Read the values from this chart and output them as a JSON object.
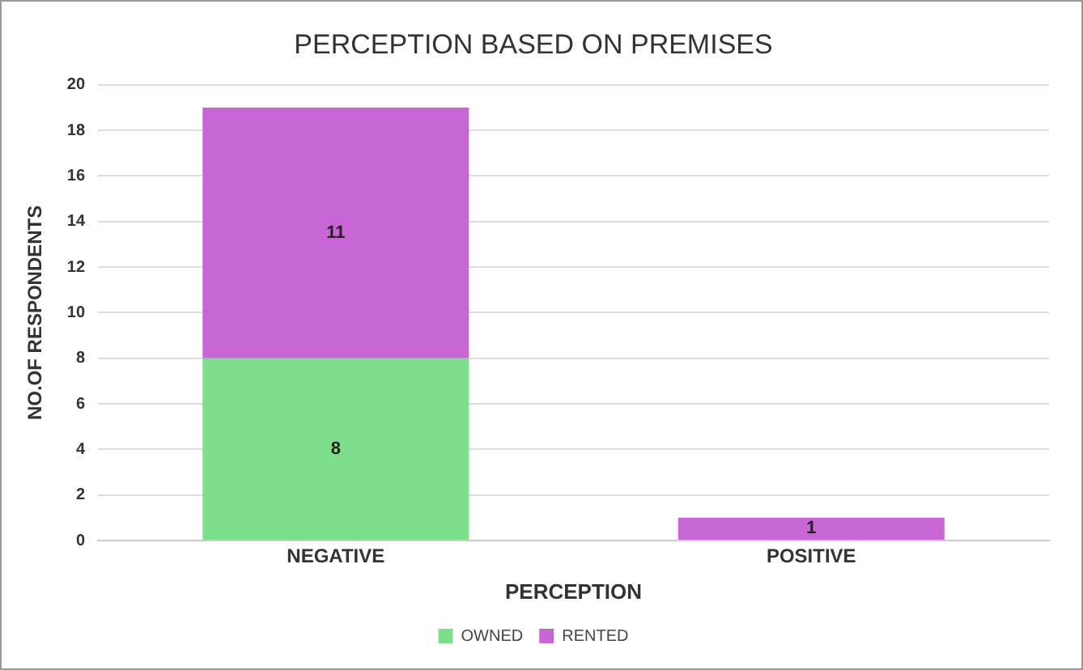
{
  "chart_data": {
    "type": "bar",
    "title": "PERCEPTION BASED ON PREMISES",
    "xlabel": "PERCEPTION",
    "ylabel": "NO.OF RESPONDENTS",
    "categories": [
      "NEGATIVE",
      "POSITIVE"
    ],
    "stacked": true,
    "series": [
      {
        "name": "OWNED",
        "color": "#7ddf8b",
        "values": [
          8,
          0
        ],
        "value_labels": [
          "8",
          null
        ]
      },
      {
        "name": "RENTED",
        "color": "#c966d6",
        "values": [
          11,
          1
        ],
        "value_labels": [
          "11",
          "1"
        ]
      }
    ],
    "ylim": [
      0,
      20
    ],
    "yticks": [
      0,
      2,
      4,
      6,
      8,
      10,
      12,
      14,
      16,
      18,
      20
    ],
    "grid": "y",
    "legend": "bottom"
  }
}
